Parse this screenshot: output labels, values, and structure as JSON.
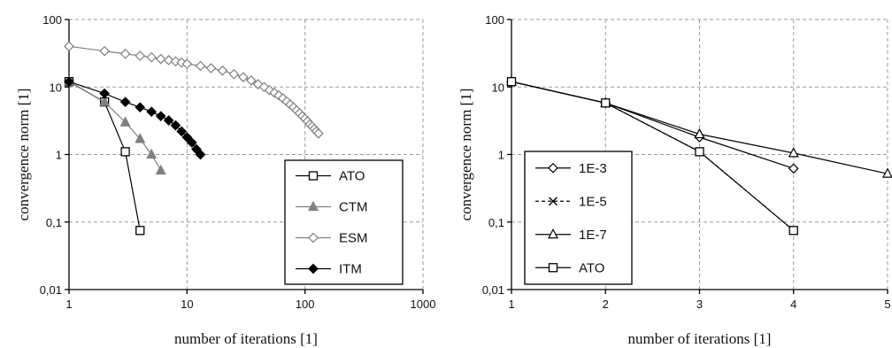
{
  "chart_data": [
    {
      "type": "line",
      "xscale": "log",
      "yscale": "log",
      "xlim": [
        1,
        1000
      ],
      "ylim": [
        0.01,
        100
      ],
      "xticks": [
        1,
        10,
        100,
        1000
      ],
      "xtick_labels": [
        "1",
        "10",
        "100",
        "1000"
      ],
      "yticks": [
        0.01,
        0.1,
        1,
        10,
        100
      ],
      "ytick_labels": [
        "0,01",
        "0,1",
        "1",
        "10",
        "100"
      ],
      "xlabel": "number of iterations [1]",
      "ylabel": "convergence norm [1]",
      "grid": true,
      "legend_position": "bottom-right",
      "series": [
        {
          "name": "ATO",
          "marker": "square-open",
          "color": "#000000",
          "dash": "",
          "x": [
            1,
            2,
            3,
            4
          ],
          "y": [
            12,
            6,
            1.1,
            0.075
          ]
        },
        {
          "name": "CTM",
          "marker": "triangle-filled",
          "color": "#808080",
          "dash": "",
          "x": [
            1,
            2,
            3,
            4,
            5,
            6
          ],
          "y": [
            12,
            6,
            3.0,
            1.7,
            1.0,
            0.58
          ]
        },
        {
          "name": "ESM",
          "marker": "diamond-open",
          "color": "#808080",
          "dash": "",
          "x": [
            1,
            2,
            3,
            4,
            5,
            6,
            7,
            8,
            9,
            10,
            13,
            16,
            20,
            25,
            30,
            35,
            40,
            45,
            50,
            55,
            60,
            65,
            70,
            75,
            80,
            85,
            90,
            95,
            100,
            105,
            110,
            115,
            120,
            125,
            130
          ],
          "y": [
            40,
            34,
            31,
            29,
            27.5,
            26,
            25,
            24,
            23,
            22,
            20.5,
            19,
            17.5,
            15.5,
            14,
            12.5,
            11,
            10,
            9,
            8.2,
            7.5,
            6.8,
            6.1,
            5.5,
            5,
            4.5,
            4.1,
            3.7,
            3.4,
            3.1,
            2.8,
            2.6,
            2.4,
            2.2,
            2.05
          ]
        },
        {
          "name": "ITM",
          "marker": "diamond-filled",
          "color": "#000000",
          "dash": "",
          "x": [
            1,
            2,
            3,
            4,
            5,
            6,
            7,
            8,
            9,
            10,
            11,
            12,
            13
          ],
          "y": [
            12,
            8.0,
            6.0,
            5.0,
            4.3,
            3.7,
            3.2,
            2.7,
            2.2,
            1.8,
            1.5,
            1.2,
            1.0
          ]
        }
      ]
    },
    {
      "type": "line",
      "xscale": "linear",
      "yscale": "log",
      "xlim": [
        1,
        5
      ],
      "ylim": [
        0.01,
        100
      ],
      "xticks": [
        1,
        2,
        3,
        4,
        5
      ],
      "xtick_labels": [
        "1",
        "2",
        "3",
        "4",
        "5"
      ],
      "yticks": [
        0.01,
        0.1,
        1,
        10,
        100
      ],
      "ytick_labels": [
        "0,01",
        "0,1",
        "1",
        "10",
        "100"
      ],
      "xlabel": "number of iterations [1]",
      "ylabel": "convergence norm [1]",
      "grid": true,
      "legend_position": "bottom-left",
      "series": [
        {
          "name": "1E-3",
          "marker": "diamond-open",
          "color": "#000000",
          "dash": "",
          "x": [
            1,
            2,
            3,
            4
          ],
          "y": [
            12,
            5.8,
            1.8,
            0.62
          ]
        },
        {
          "name": "1E-5",
          "marker": "x",
          "color": "#000000",
          "dash": "4 3",
          "x": [
            1,
            2,
            3,
            4
          ],
          "y": [
            12,
            5.8,
            1.1,
            0.075
          ]
        },
        {
          "name": "1E-7",
          "marker": "triangle-open",
          "color": "#000000",
          "dash": "",
          "x": [
            1,
            2,
            3,
            4,
            5
          ],
          "y": [
            12,
            5.8,
            2.0,
            1.05,
            0.52
          ]
        },
        {
          "name": "ATO",
          "marker": "square-open",
          "color": "#000000",
          "dash": "",
          "x": [
            1,
            2,
            3,
            4
          ],
          "y": [
            12,
            5.8,
            1.1,
            0.075
          ]
        }
      ]
    }
  ]
}
